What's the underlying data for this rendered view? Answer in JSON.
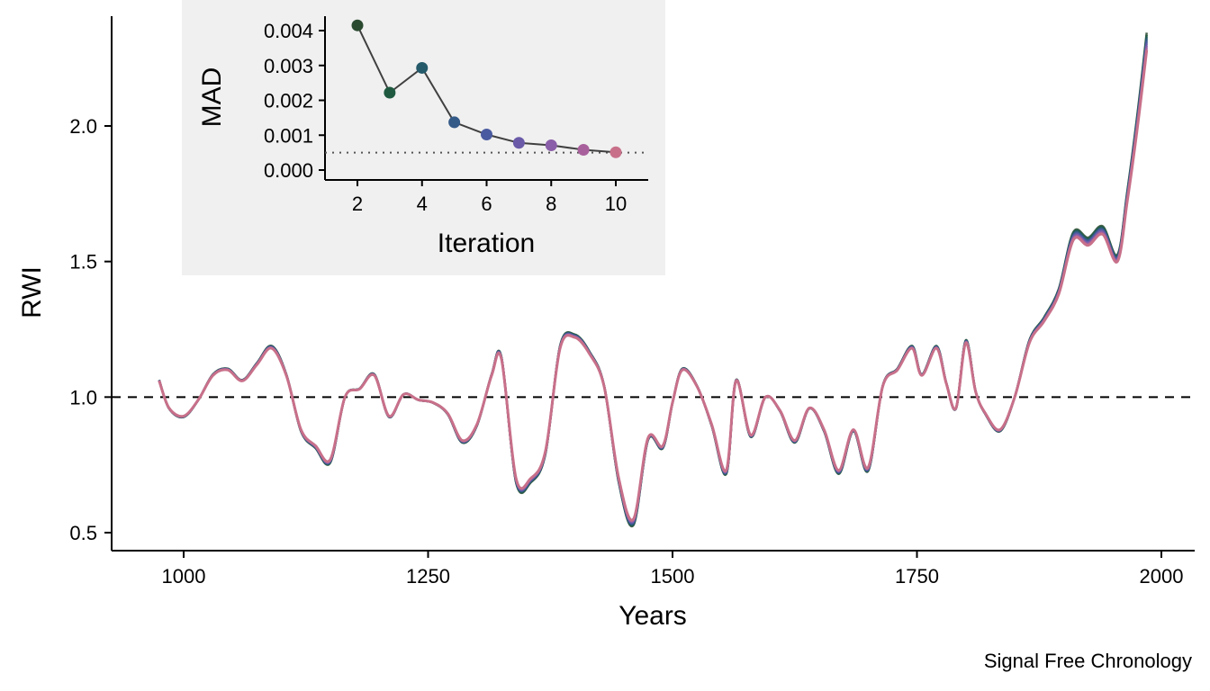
{
  "chart_data": [
    {
      "type": "line",
      "title": "",
      "xlabel": "Years",
      "ylabel": "RWI",
      "caption": "Signal Free Chronology",
      "xlim": [
        1000,
        2000
      ],
      "ylim": [
        0.5,
        2.3
      ],
      "xticks": [
        1000,
        1250,
        1500,
        1750,
        2000
      ],
      "yticks": [
        0.5,
        1.0,
        1.5,
        2.0
      ],
      "xtick_labels": [
        "1000",
        "1250",
        "1500",
        "1750",
        "2000"
      ],
      "ytick_labels": [
        "0.5",
        "1.0",
        "1.5",
        "2.0"
      ],
      "reference_line": 1.0,
      "grid": false,
      "x": [
        975,
        985,
        1000,
        1015,
        1030,
        1045,
        1060,
        1075,
        1090,
        1105,
        1120,
        1135,
        1150,
        1165,
        1180,
        1195,
        1210,
        1225,
        1240,
        1255,
        1270,
        1285,
        1300,
        1315,
        1325,
        1340,
        1355,
        1370,
        1385,
        1400,
        1415,
        1430,
        1445,
        1460,
        1475,
        1490,
        1500,
        1510,
        1525,
        1540,
        1555,
        1565,
        1580,
        1595,
        1610,
        1625,
        1640,
        1655,
        1670,
        1685,
        1700,
        1715,
        1730,
        1745,
        1755,
        1770,
        1780,
        1790,
        1800,
        1810,
        1820,
        1835,
        1850,
        1865,
        1880,
        1895,
        1910,
        1925,
        1940,
        1955,
        1965,
        1975,
        1985
      ],
      "series": [
        {
          "values": [
            1.06,
            0.96,
            0.93,
            0.99,
            1.08,
            1.1,
            1.06,
            1.12,
            1.18,
            1.08,
            0.88,
            0.82,
            0.77,
            1.0,
            1.03,
            1.08,
            0.93,
            1.01,
            0.99,
            0.98,
            0.94,
            0.84,
            0.9,
            1.08,
            1.14,
            0.7,
            0.7,
            0.8,
            1.18,
            1.22,
            1.16,
            1.04,
            0.7,
            0.55,
            0.85,
            0.82,
            0.98,
            1.1,
            1.04,
            0.9,
            0.73,
            1.06,
            0.86,
            1.0,
            0.95,
            0.84,
            0.96,
            0.88,
            0.73,
            0.88,
            0.74,
            1.04,
            1.1,
            1.18,
            1.08,
            1.18,
            1.05,
            0.96,
            1.2,
            1.02,
            0.94,
            0.88,
            1.0,
            1.2,
            1.28,
            1.38,
            1.58,
            1.56,
            1.6,
            1.5,
            1.72,
            1.98,
            2.28
          ]
        }
      ]
    },
    {
      "type": "scatter",
      "title": "",
      "xlabel": "Iteration",
      "ylabel": "MAD",
      "xlim": [
        1,
        11
      ],
      "ylim": [
        -0.0002,
        0.0043
      ],
      "xticks": [
        2,
        4,
        6,
        8,
        10
      ],
      "yticks": [
        0.0,
        0.001,
        0.002,
        0.003,
        0.004
      ],
      "xtick_labels": [
        "2",
        "4",
        "6",
        "8",
        "10"
      ],
      "ytick_labels": [
        "0.000",
        "0.001",
        "0.002",
        "0.003",
        "0.004"
      ],
      "threshold": 0.0005,
      "x": [
        2,
        3,
        4,
        5,
        6,
        7,
        8,
        9,
        10
      ],
      "values": [
        0.00415,
        0.00222,
        0.00293,
        0.00137,
        0.00102,
        0.00078,
        0.00071,
        0.00058,
        0.00051
      ],
      "colors": [
        "#2a4a30",
        "#1f5a40",
        "#245a6a",
        "#345a88",
        "#4a5aa0",
        "#6a5aa8",
        "#8a5ea8",
        "#a8609c",
        "#c8708a"
      ],
      "background": "#f0f0f0"
    }
  ]
}
